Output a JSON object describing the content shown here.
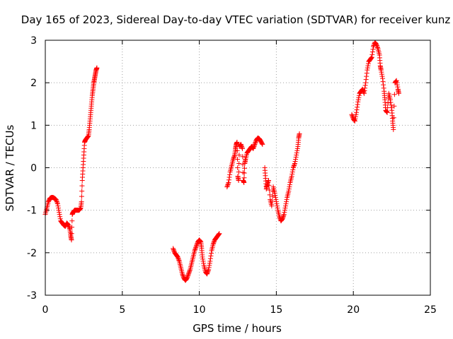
{
  "chart_data": {
    "type": "scatter",
    "title": "Day 165 of 2023, Sidereal Day-to-day VTEC variation (SDTVAR) for receiver kunz",
    "xlabel": "GPS time / hours",
    "ylabel": "SDTVAR / TECUs",
    "xlim": [
      0,
      25
    ],
    "ylim": [
      -3,
      3
    ],
    "xticks": [
      "0",
      "5",
      "10",
      "15",
      "20",
      "25"
    ],
    "yticks": [
      "-3",
      "-2",
      "-1",
      "0",
      "1",
      "2",
      "3"
    ],
    "grid": true,
    "marker": "plus",
    "marker_color": "#ff0000",
    "series": [
      {
        "segments": [
          [
            [
              0.0,
              -1.1
            ],
            [
              0.1,
              -0.95
            ],
            [
              0.2,
              -0.8
            ],
            [
              0.3,
              -0.72
            ],
            [
              0.4,
              -0.7
            ],
            [
              0.5,
              -0.7
            ],
            [
              0.6,
              -0.72
            ],
            [
              0.7,
              -0.75
            ],
            [
              0.8,
              -0.85
            ],
            [
              0.9,
              -1.05
            ],
            [
              1.0,
              -1.25
            ],
            [
              1.1,
              -1.3
            ],
            [
              1.2,
              -1.35
            ],
            [
              1.3,
              -1.38
            ],
            [
              1.4,
              -1.3
            ],
            [
              1.5,
              -1.35
            ],
            [
              1.6,
              -1.45
            ],
            [
              1.65,
              -1.6
            ],
            [
              1.7,
              -1.7
            ],
            [
              1.75,
              -1.1
            ],
            [
              1.8,
              -1.05
            ],
            [
              1.9,
              -1.0
            ],
            [
              2.0,
              -1.0
            ],
            [
              2.1,
              -1.0
            ],
            [
              2.2,
              -1.0
            ],
            [
              2.3,
              -0.95
            ],
            [
              2.35,
              -0.8
            ],
            [
              2.4,
              -0.3
            ],
            [
              2.45,
              0.0
            ],
            [
              2.5,
              0.3
            ],
            [
              2.55,
              0.6
            ],
            [
              2.6,
              0.65
            ],
            [
              2.7,
              0.7
            ],
            [
              2.8,
              0.75
            ],
            [
              2.85,
              0.9
            ],
            [
              2.9,
              1.1
            ],
            [
              2.95,
              1.3
            ],
            [
              3.0,
              1.5
            ],
            [
              3.05,
              1.7
            ],
            [
              3.1,
              1.85
            ],
            [
              3.15,
              2.0
            ],
            [
              3.2,
              2.1
            ],
            [
              3.25,
              2.2
            ],
            [
              3.3,
              2.3
            ],
            [
              3.35,
              2.35
            ]
          ],
          [
            [
              8.3,
              -1.9
            ],
            [
              8.4,
              -2.0
            ],
            [
              8.5,
              -2.05
            ],
            [
              8.6,
              -2.1
            ],
            [
              8.7,
              -2.2
            ],
            [
              8.8,
              -2.35
            ],
            [
              8.9,
              -2.5
            ],
            [
              9.0,
              -2.6
            ],
            [
              9.1,
              -2.65
            ],
            [
              9.2,
              -2.6
            ],
            [
              9.3,
              -2.5
            ],
            [
              9.4,
              -2.4
            ],
            [
              9.5,
              -2.25
            ],
            [
              9.6,
              -2.1
            ],
            [
              9.7,
              -1.95
            ],
            [
              9.8,
              -1.85
            ],
            [
              9.9,
              -1.75
            ],
            [
              10.0,
              -1.7
            ],
            [
              10.1,
              -1.75
            ],
            [
              10.15,
              -1.9
            ],
            [
              10.2,
              -2.1
            ],
            [
              10.3,
              -2.3
            ],
            [
              10.4,
              -2.45
            ],
            [
              10.5,
              -2.5
            ],
            [
              10.6,
              -2.4
            ],
            [
              10.7,
              -2.2
            ],
            [
              10.8,
              -1.95
            ],
            [
              10.9,
              -1.8
            ],
            [
              11.0,
              -1.7
            ],
            [
              11.1,
              -1.65
            ],
            [
              11.2,
              -1.6
            ],
            [
              11.3,
              -1.55
            ]
          ],
          [
            [
              11.8,
              -0.45
            ],
            [
              11.9,
              -0.35
            ],
            [
              12.0,
              -0.1
            ],
            [
              12.1,
              0.05
            ],
            [
              12.2,
              0.2
            ],
            [
              12.3,
              0.3
            ],
            [
              12.35,
              0.45
            ],
            [
              12.4,
              0.55
            ],
            [
              12.45,
              0.6
            ],
            [
              12.5,
              -0.2
            ],
            [
              12.55,
              -0.3
            ],
            [
              12.6,
              0.5
            ],
            [
              12.7,
              0.55
            ],
            [
              12.8,
              0.45
            ],
            [
              12.85,
              -0.3
            ],
            [
              12.9,
              -0.35
            ],
            [
              12.95,
              0.1
            ],
            [
              13.0,
              0.2
            ],
            [
              13.1,
              0.35
            ],
            [
              13.2,
              0.4
            ],
            [
              13.3,
              0.45
            ],
            [
              13.4,
              0.5
            ],
            [
              13.5,
              0.45
            ],
            [
              13.6,
              0.55
            ],
            [
              13.7,
              0.65
            ],
            [
              13.8,
              0.7
            ],
            [
              13.9,
              0.68
            ],
            [
              14.0,
              0.62
            ],
            [
              14.1,
              0.55
            ]
          ],
          [
            [
              14.25,
              0.0
            ],
            [
              14.3,
              -0.25
            ],
            [
              14.35,
              -0.5
            ],
            [
              14.4,
              -0.4
            ],
            [
              14.5,
              -0.3
            ],
            [
              14.6,
              -0.75
            ],
            [
              14.7,
              -0.9
            ],
            [
              14.8,
              -0.45
            ],
            [
              14.9,
              -0.6
            ],
            [
              15.0,
              -0.8
            ],
            [
              15.1,
              -1.0
            ],
            [
              15.2,
              -1.15
            ],
            [
              15.3,
              -1.25
            ],
            [
              15.4,
              -1.2
            ],
            [
              15.5,
              -1.1
            ],
            [
              15.6,
              -0.9
            ],
            [
              15.7,
              -0.7
            ],
            [
              15.8,
              -0.55
            ],
            [
              15.9,
              -0.35
            ],
            [
              16.0,
              -0.2
            ],
            [
              16.1,
              0.0
            ],
            [
              16.2,
              0.1
            ],
            [
              16.3,
              0.3
            ],
            [
              16.4,
              0.5
            ],
            [
              16.45,
              0.7
            ],
            [
              16.5,
              0.8
            ]
          ],
          [
            [
              19.9,
              1.25
            ],
            [
              20.0,
              1.15
            ],
            [
              20.1,
              1.1
            ],
            [
              20.2,
              1.3
            ],
            [
              20.3,
              1.55
            ],
            [
              20.4,
              1.75
            ],
            [
              20.5,
              1.8
            ],
            [
              20.6,
              1.85
            ],
            [
              20.7,
              1.75
            ],
            [
              20.8,
              2.0
            ],
            [
              20.9,
              2.3
            ],
            [
              21.0,
              2.5
            ],
            [
              21.1,
              2.55
            ],
            [
              21.2,
              2.6
            ],
            [
              21.3,
              2.85
            ],
            [
              21.4,
              2.95
            ],
            [
              21.5,
              2.9
            ],
            [
              21.6,
              2.8
            ],
            [
              21.7,
              2.65
            ],
            [
              21.75,
              2.4
            ],
            [
              21.8,
              2.3
            ],
            [
              21.9,
              2.1
            ],
            [
              22.0,
              1.8
            ],
            [
              22.05,
              1.6
            ],
            [
              22.1,
              1.35
            ],
            [
              22.2,
              1.3
            ],
            [
              22.3,
              1.75
            ],
            [
              22.4,
              1.6
            ],
            [
              22.5,
              1.35
            ],
            [
              22.55,
              1.1
            ],
            [
              22.6,
              0.9
            ],
            [
              22.7,
              2.0
            ],
            [
              22.8,
              2.05
            ],
            [
              22.9,
              1.85
            ],
            [
              22.95,
              1.75
            ]
          ]
        ]
      }
    ]
  }
}
